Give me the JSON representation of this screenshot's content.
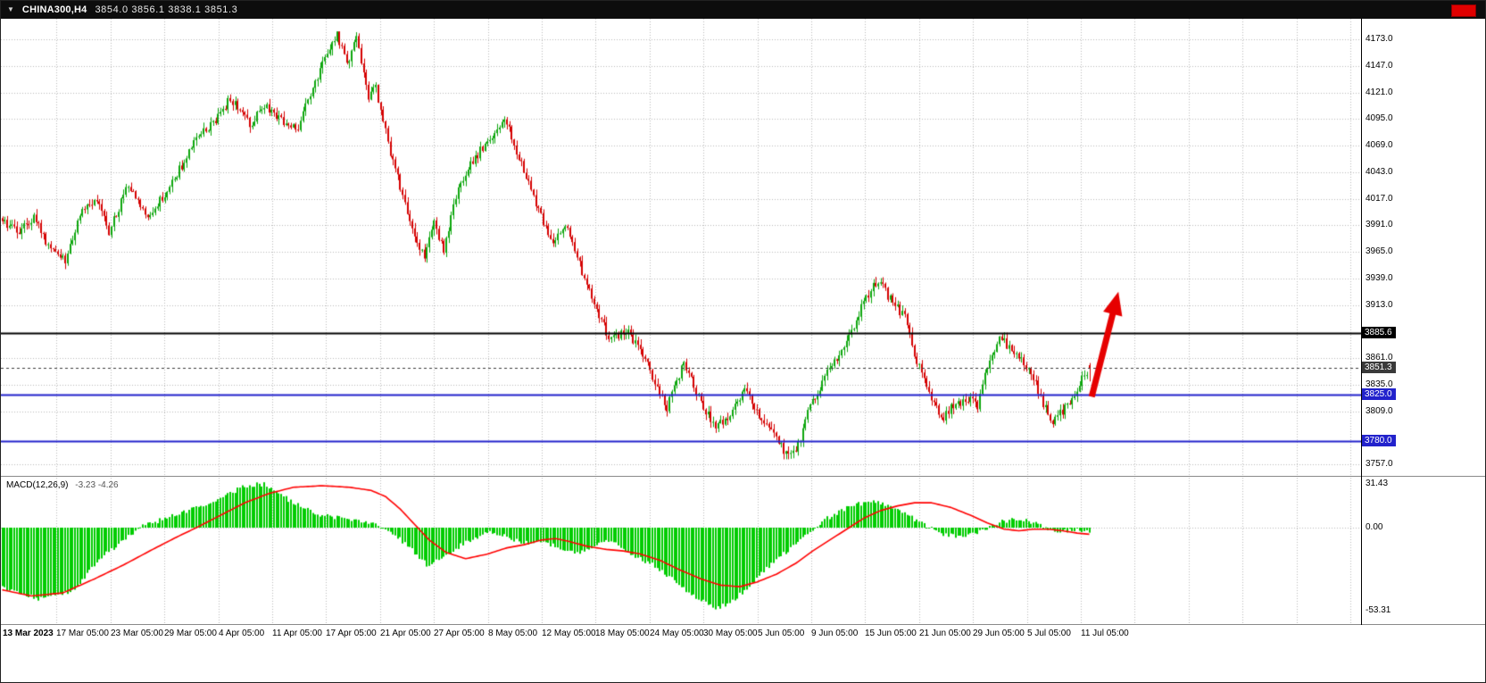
{
  "titlebar": {
    "dropdown_icon": "▼",
    "symbol_text": "CHINA300,H4",
    "ohlc_text": "3854.0 3856.1 3838.1 3851.3"
  },
  "chart_data": [
    {
      "type": "candlestick",
      "symbol": "CHINA300",
      "timeframe": "H4",
      "current_ohlc": {
        "open": 3854.0,
        "high": 3856.1,
        "low": 3838.1,
        "close": 3851.3
      },
      "y_axis": {
        "min": 3757.0,
        "max": 4173.0,
        "tick_step": 26.0,
        "tick_labels": [
          "4173.0",
          "4147.0",
          "4121.0",
          "4095.0",
          "4069.0",
          "4043.0",
          "4017.0",
          "3991.0",
          "3965.0",
          "3939.0",
          "3913.0",
          "3861.0",
          "3835.0",
          "3809.0",
          "3757.0"
        ]
      },
      "x_tick_labels": [
        "13 Mar 2023",
        "17 Mar 05:00",
        "23 Mar 05:00",
        "29 Mar 05:00",
        "4 Apr 05:00",
        "11 Apr 05:00",
        "17 Apr 05:00",
        "21 Apr 05:00",
        "27 Apr 05:00",
        "8 May 05:00",
        "12 May 05:00",
        "18 May 05:00",
        "24 May 05:00",
        "30 May 05:00",
        "5 Jun 05:00",
        "9 Jun 05:00",
        "15 Jun 05:00",
        "21 Jun 05:00",
        "29 Jun 05:00",
        "5 Jul 05:00",
        "11 Jul 05:00"
      ],
      "grid": "dotted",
      "up_color": "#0da60d",
      "down_color": "#d40000",
      "bars_total": 449,
      "levels": [
        {
          "label": "3885.6",
          "price": 3885.6,
          "color": "#000000",
          "line_style": "solid",
          "line_width": 2,
          "role": "horizontal-line"
        },
        {
          "label": "3851.3",
          "price": 3851.3,
          "color": "#3a3a3a",
          "line_style": "dashed",
          "line_width": 1,
          "role": "current-price"
        },
        {
          "label": "3825.0",
          "price": 3825.0,
          "color": "#2222cc",
          "line_style": "solid",
          "line_width": 2,
          "role": "support-line"
        },
        {
          "label": "3780.0",
          "price": 3780.0,
          "color": "#2222cc",
          "line_style": "solid",
          "line_width": 2,
          "role": "support-line"
        }
      ],
      "price_path_waypoints": [
        [
          0,
          3995
        ],
        [
          7,
          3985
        ],
        [
          13,
          4000
        ],
        [
          20,
          3965
        ],
        [
          26,
          3958
        ],
        [
          33,
          4005
        ],
        [
          39,
          4015
        ],
        [
          44,
          3985
        ],
        [
          52,
          4030
        ],
        [
          59,
          4000
        ],
        [
          65,
          4015
        ],
        [
          72,
          4040
        ],
        [
          79,
          4075
        ],
        [
          87,
          4090
        ],
        [
          94,
          4115
        ],
        [
          102,
          4090
        ],
        [
          109,
          4108
        ],
        [
          116,
          4090
        ],
        [
          122,
          4085
        ],
        [
          127,
          4120
        ],
        [
          133,
          4155
        ],
        [
          138,
          4178
        ],
        [
          142,
          4150
        ],
        [
          146,
          4172
        ],
        [
          151,
          4115
        ],
        [
          154,
          4125
        ],
        [
          160,
          4060
        ],
        [
          164,
          4030
        ],
        [
          170,
          3980
        ],
        [
          174,
          3958
        ],
        [
          178,
          3992
        ],
        [
          182,
          3968
        ],
        [
          188,
          4030
        ],
        [
          195,
          4058
        ],
        [
          201,
          4075
        ],
        [
          207,
          4098
        ],
        [
          211,
          4070
        ],
        [
          216,
          4040
        ],
        [
          222,
          4000
        ],
        [
          227,
          3972
        ],
        [
          233,
          3992
        ],
        [
          239,
          3945
        ],
        [
          245,
          3905
        ],
        [
          251,
          3878
        ],
        [
          257,
          3888
        ],
        [
          263,
          3870
        ],
        [
          269,
          3838
        ],
        [
          274,
          3812
        ],
        [
          281,
          3858
        ],
        [
          287,
          3822
        ],
        [
          294,
          3792
        ],
        [
          300,
          3806
        ],
        [
          306,
          3832
        ],
        [
          311,
          3810
        ],
        [
          317,
          3788
        ],
        [
          323,
          3768
        ],
        [
          328,
          3775
        ],
        [
          333,
          3815
        ],
        [
          339,
          3842
        ],
        [
          344,
          3862
        ],
        [
          350,
          3888
        ],
        [
          355,
          3915
        ],
        [
          361,
          3938
        ],
        [
          366,
          3918
        ],
        [
          372,
          3902
        ],
        [
          377,
          3858
        ],
        [
          382,
          3828
        ],
        [
          387,
          3800
        ],
        [
          391,
          3812
        ],
        [
          397,
          3822
        ],
        [
          402,
          3815
        ],
        [
          406,
          3852
        ],
        [
          411,
          3882
        ],
        [
          415,
          3872
        ],
        [
          421,
          3858
        ],
        [
          427,
          3830
        ],
        [
          432,
          3798
        ],
        [
          438,
          3812
        ],
        [
          442,
          3828
        ],
        [
          448,
          3851.3
        ]
      ],
      "annotations": [
        {
          "type": "arrow",
          "direction": "up",
          "color": "#e60000",
          "from_bar": 449,
          "from_price": 3823,
          "to_bar": 460,
          "to_price": 3926
        }
      ]
    },
    {
      "type": "macd",
      "label": "MACD(12,26,9)",
      "values_text": "-3.23 -4.26",
      "macd_value": -3.23,
      "signal_value": -4.26,
      "y_scale_labels": [
        "31.43",
        "0.00",
        "-53.31"
      ],
      "y_max": 31.43,
      "y_min": -53.31,
      "histogram_color": "#00cc00",
      "signal_color": "#ff0000",
      "histogram_waypoints": [
        [
          0,
          -38
        ],
        [
          15,
          -46
        ],
        [
          30,
          -40
        ],
        [
          40,
          -20
        ],
        [
          50,
          -8
        ],
        [
          57,
          0
        ],
        [
          70,
          8
        ],
        [
          85,
          15
        ],
        [
          100,
          27
        ],
        [
          108,
          28
        ],
        [
          118,
          18
        ],
        [
          130,
          8
        ],
        [
          140,
          6
        ],
        [
          150,
          4
        ],
        [
          158,
          0
        ],
        [
          166,
          -10
        ],
        [
          175,
          -24
        ],
        [
          182,
          -20
        ],
        [
          190,
          -10
        ],
        [
          200,
          -3
        ],
        [
          208,
          -6
        ],
        [
          215,
          -10
        ],
        [
          222,
          -8
        ],
        [
          228,
          -12
        ],
        [
          238,
          -16
        ],
        [
          246,
          -10
        ],
        [
          252,
          -8
        ],
        [
          260,
          -18
        ],
        [
          268,
          -24
        ],
        [
          276,
          -33
        ],
        [
          285,
          -44
        ],
        [
          295,
          -52
        ],
        [
          302,
          -46
        ],
        [
          310,
          -34
        ],
        [
          318,
          -22
        ],
        [
          326,
          -12
        ],
        [
          334,
          -2
        ],
        [
          340,
          6
        ],
        [
          350,
          14
        ],
        [
          358,
          17
        ],
        [
          365,
          15
        ],
        [
          373,
          8
        ],
        [
          380,
          2
        ],
        [
          388,
          -4
        ],
        [
          396,
          -6
        ],
        [
          404,
          -2
        ],
        [
          412,
          4
        ],
        [
          420,
          6
        ],
        [
          428,
          1
        ],
        [
          435,
          -3
        ],
        [
          442,
          -1
        ],
        [
          448,
          -3.23
        ]
      ],
      "signal_waypoints": [
        [
          0,
          -40
        ],
        [
          12,
          -44
        ],
        [
          25,
          -42
        ],
        [
          38,
          -33
        ],
        [
          50,
          -24
        ],
        [
          62,
          -14
        ],
        [
          72,
          -6
        ],
        [
          80,
          0
        ],
        [
          90,
          8
        ],
        [
          100,
          16
        ],
        [
          110,
          22
        ],
        [
          120,
          26
        ],
        [
          132,
          27
        ],
        [
          143,
          26
        ],
        [
          152,
          24
        ],
        [
          158,
          20
        ],
        [
          164,
          12
        ],
        [
          170,
          2
        ],
        [
          176,
          -8
        ],
        [
          183,
          -16
        ],
        [
          191,
          -20
        ],
        [
          200,
          -17
        ],
        [
          208,
          -13
        ],
        [
          215,
          -11
        ],
        [
          222,
          -8
        ],
        [
          228,
          -7
        ],
        [
          234,
          -9
        ],
        [
          241,
          -12
        ],
        [
          249,
          -14
        ],
        [
          256,
          -15
        ],
        [
          263,
          -17
        ],
        [
          271,
          -21
        ],
        [
          279,
          -27
        ],
        [
          288,
          -33
        ],
        [
          296,
          -37
        ],
        [
          304,
          -38
        ],
        [
          311,
          -35
        ],
        [
          319,
          -30
        ],
        [
          327,
          -23
        ],
        [
          334,
          -15
        ],
        [
          341,
          -8
        ],
        [
          348,
          -1
        ],
        [
          355,
          6
        ],
        [
          362,
          11
        ],
        [
          369,
          14
        ],
        [
          376,
          16
        ],
        [
          383,
          16
        ],
        [
          391,
          13
        ],
        [
          399,
          8
        ],
        [
          406,
          3
        ],
        [
          413,
          -1
        ],
        [
          419,
          -2
        ],
        [
          425,
          -1
        ],
        [
          431,
          -1
        ],
        [
          437,
          -2
        ],
        [
          443,
          -3.5
        ],
        [
          448,
          -4.26
        ]
      ]
    }
  ]
}
